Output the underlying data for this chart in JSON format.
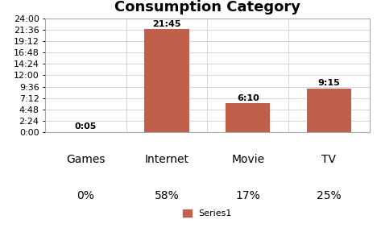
{
  "title": "Consumption Category",
  "categories": [
    "Games",
    "Internet",
    "Movie",
    "TV"
  ],
  "percentages": [
    "0%",
    "58%",
    "17%",
    "25%"
  ],
  "values_minutes": [
    5,
    1305,
    370,
    555
  ],
  "bar_labels": [
    "0:05",
    "21:45",
    "6:10",
    "9:15"
  ],
  "bar_color": "#c0604a",
  "yticks_minutes": [
    0,
    144,
    288,
    432,
    576,
    720,
    864,
    1008,
    1152,
    1296,
    1440
  ],
  "ytick_labels": [
    "0:00",
    "2:24",
    "4:48",
    "7:12",
    "9:36",
    "12:00",
    "14:24",
    "16:48",
    "19:12",
    "21:36",
    "24:00"
  ],
  "legend_label": "Series1",
  "background_color": "#ffffff",
  "title_fontsize": 13,
  "label_fontsize": 8,
  "axis_fontsize": 8,
  "cat_fontsize": 10,
  "pct_fontsize": 10,
  "bar_width": 0.55
}
